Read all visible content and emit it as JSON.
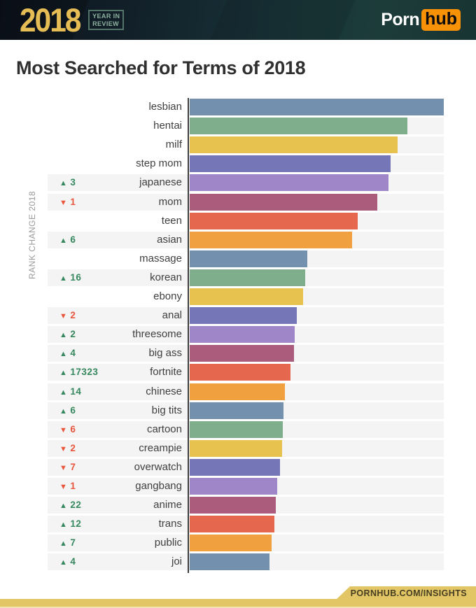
{
  "header": {
    "year": "2018",
    "badge_line1": "YEAR IN",
    "badge_line2": "REVIEW",
    "logo_porn": "Porn",
    "logo_hub": "hub",
    "colors": {
      "year_gold": "#e6bc55",
      "badge_teal": "#8fb3a0",
      "hub_orange": "#f79106",
      "header_dark": "#12232b"
    }
  },
  "title": "Most Searched for Terms of 2018",
  "axis_label": "RANK CHANGE 2018",
  "footer": {
    "ribbon_text": "PORNHUB.COM/INSIGHTS",
    "gold": "#e2c666"
  },
  "chart_data": {
    "type": "bar",
    "orientation": "horizontal",
    "title": "Most Searched for Terms of 2018",
    "categories": [
      "lesbian",
      "hentai",
      "milf",
      "step mom",
      "japanese",
      "mom",
      "teen",
      "asian",
      "massage",
      "korean",
      "ebony",
      "anal",
      "threesome",
      "big ass",
      "fortnite",
      "chinese",
      "big tits",
      "cartoon",
      "creampie",
      "overwatch",
      "gangbang",
      "anime",
      "trans",
      "public",
      "joi"
    ],
    "values": [
      100,
      85.7,
      81.8,
      79.1,
      78.2,
      73.8,
      66.1,
      63.9,
      46.3,
      45.5,
      44.6,
      42.1,
      41.3,
      41.0,
      39.7,
      37.5,
      36.9,
      36.6,
      36.4,
      35.5,
      34.4,
      33.9,
      33.3,
      32.2,
      31.4
    ],
    "value_note": "relative search volume, % of top term, estimated from bar lengths (no numeric axis shown)",
    "rank_change": [
      null,
      null,
      null,
      null,
      {
        "direction": "up",
        "amount": 3
      },
      {
        "direction": "down",
        "amount": 1
      },
      null,
      {
        "direction": "up",
        "amount": 6
      },
      null,
      {
        "direction": "up",
        "amount": 16
      },
      null,
      {
        "direction": "down",
        "amount": 2
      },
      {
        "direction": "up",
        "amount": 2
      },
      {
        "direction": "up",
        "amount": 4
      },
      {
        "direction": "up",
        "amount": 17323
      },
      {
        "direction": "up",
        "amount": 14
      },
      {
        "direction": "up",
        "amount": 6
      },
      {
        "direction": "down",
        "amount": 6
      },
      {
        "direction": "down",
        "amount": 2
      },
      {
        "direction": "down",
        "amount": 7
      },
      {
        "direction": "down",
        "amount": 1
      },
      {
        "direction": "up",
        "amount": 22
      },
      {
        "direction": "up",
        "amount": 12
      },
      {
        "direction": "up",
        "amount": 7
      },
      {
        "direction": "up",
        "amount": 4
      }
    ],
    "palette": [
      "#7390ae",
      "#7fae8c",
      "#e8c24f",
      "#7576b8",
      "#9f86c8",
      "#ab5c7d",
      "#e5684e",
      "#f0a03f"
    ],
    "up_color": "#37885f",
    "down_color": "#e8563e",
    "up_glyph": "▲",
    "down_glyph": "▼",
    "row_stripe_color": "#f4f4f4",
    "legend": "none",
    "grid": "off"
  }
}
